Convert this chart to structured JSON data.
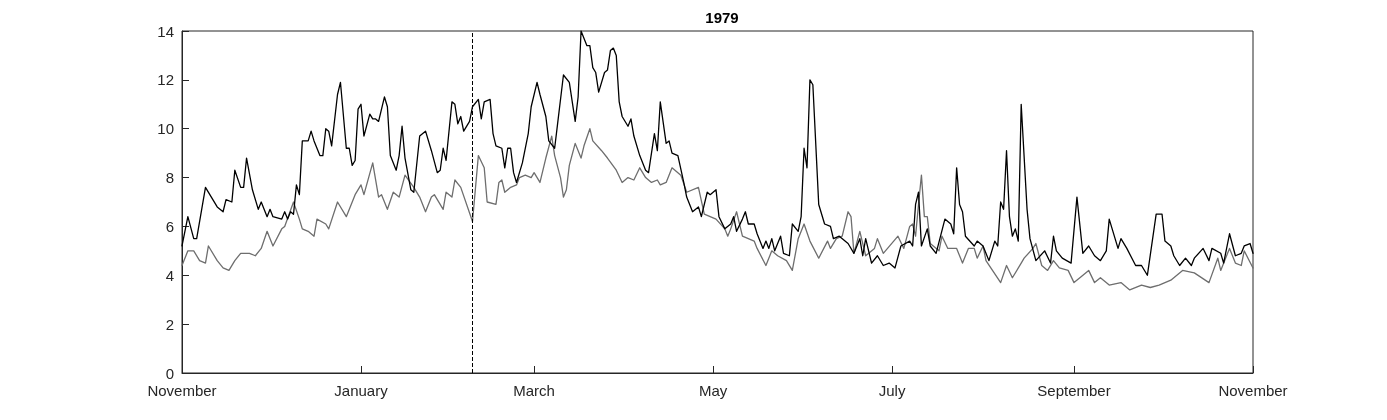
{
  "chart_data": {
    "type": "line",
    "title": "1979",
    "xlim": [
      "1978-11-01",
      "1979-11-01"
    ],
    "xticks": [
      {
        "value": "1978-11-01",
        "label": "November"
      },
      {
        "value": "1979-01-01",
        "label": "January"
      },
      {
        "value": "1979-03-01",
        "label": "March"
      },
      {
        "value": "1979-05-01",
        "label": "May"
      },
      {
        "value": "1979-07-01",
        "label": "July"
      },
      {
        "value": "1979-09-01",
        "label": "September"
      },
      {
        "value": "1979-11-01",
        "label": "November"
      }
    ],
    "ylim": [
      0,
      14
    ],
    "yticks": [
      0,
      2,
      4,
      6,
      8,
      10,
      12,
      14
    ],
    "grid": false,
    "legend": false,
    "marker": "none",
    "line_style": "solid",
    "ref_lines": [
      {
        "axis": "x",
        "value": "1979-02-08",
        "color": "#000000",
        "line_style": "dashed"
      }
    ],
    "series": [
      {
        "color": "#6e6e6e",
        "x": [
          "1978-11-01",
          "1978-11-03",
          "1978-11-05",
          "1978-11-07",
          "1978-11-09",
          "1978-11-10",
          "1978-11-13",
          "1978-11-15",
          "1978-11-17",
          "1978-11-19",
          "1978-11-21",
          "1978-11-24",
          "1978-11-26",
          "1978-11-28",
          "1978-11-30",
          "1978-12-02",
          "1978-12-05",
          "1978-12-06",
          "1978-12-09",
          "1978-12-11",
          "1978-12-12",
          "1978-12-14",
          "1978-12-16",
          "1978-12-17",
          "1978-12-20",
          "1978-12-21",
          "1978-12-24",
          "1978-12-27",
          "1978-12-30",
          "1979-01-01",
          "1979-01-02",
          "1979-01-05",
          "1979-01-07",
          "1979-01-08",
          "1979-01-10",
          "1979-01-12",
          "1979-01-14",
          "1979-01-16",
          "1979-01-19",
          "1979-01-21",
          "1979-01-23",
          "1979-01-25",
          "1979-01-26",
          "1979-01-29",
          "1979-01-30",
          "1979-02-01",
          "1979-02-02",
          "1979-02-04",
          "1979-02-08",
          "1979-02-10",
          "1979-02-12",
          "1979-02-13",
          "1979-02-16",
          "1979-02-17",
          "1979-02-18",
          "1979-02-19",
          "1979-02-21",
          "1979-02-23",
          "1979-02-24",
          "1979-02-26",
          "1979-02-28",
          "1979-03-01",
          "1979-03-03",
          "1979-03-05",
          "1979-03-07",
          "1979-03-08",
          "1979-03-10",
          "1979-03-11",
          "1979-03-12",
          "1979-03-13",
          "1979-03-15",
          "1979-03-17",
          "1979-03-18",
          "1979-03-20",
          "1979-03-21",
          "1979-03-24",
          "1979-03-26",
          "1979-03-29",
          "1979-03-31",
          "1979-04-02",
          "1979-04-04",
          "1979-04-06",
          "1979-04-08",
          "1979-04-10",
          "1979-04-12",
          "1979-04-13",
          "1979-04-15",
          "1979-04-17",
          "1979-04-20",
          "1979-04-22",
          "1979-04-26",
          "1979-04-28",
          "1979-05-02",
          "1979-05-05",
          "1979-05-06",
          "1979-05-07",
          "1979-05-09",
          "1979-05-11",
          "1979-05-15",
          "1979-05-16",
          "1979-05-19",
          "1979-05-21",
          "1979-05-23",
          "1979-05-26",
          "1979-05-28",
          "1979-05-30",
          "1979-06-01",
          "1979-06-03",
          "1979-06-06",
          "1979-06-09",
          "1979-06-10",
          "1979-06-12",
          "1979-06-14",
          "1979-06-16",
          "1979-06-17",
          "1979-06-18",
          "1979-06-20",
          "1979-06-22",
          "1979-06-25",
          "1979-06-26",
          "1979-06-28",
          "1979-07-03",
          "1979-07-05",
          "1979-07-07",
          "1979-07-08",
          "1979-07-09",
          "1979-07-10",
          "1979-07-11",
          "1979-07-12",
          "1979-07-13",
          "1979-07-14",
          "1979-07-17",
          "1979-07-18",
          "1979-07-20",
          "1979-07-23",
          "1979-07-25",
          "1979-07-27",
          "1979-07-29",
          "1979-07-30",
          "1979-08-01",
          "1979-08-02",
          "1979-08-07",
          "1979-08-09",
          "1979-08-11",
          "1979-08-14",
          "1979-08-15",
          "1979-08-18",
          "1979-08-19",
          "1979-08-21",
          "1979-08-23",
          "1979-08-25",
          "1979-08-27",
          "1979-08-30",
          "1979-09-01",
          "1979-09-03",
          "1979-09-06",
          "1979-09-08",
          "1979-09-10",
          "1979-09-13",
          "1979-09-17",
          "1979-09-20",
          "1979-09-24",
          "1979-09-27",
          "1979-09-30",
          "1979-10-04",
          "1979-10-08",
          "1979-10-12",
          "1979-10-17",
          "1979-10-20",
          "1979-10-21",
          "1979-10-24",
          "1979-10-26",
          "1979-10-28",
          "1979-10-29",
          "1979-11-01"
        ],
        "values": [
          4.4,
          5.0,
          5.0,
          4.6,
          4.5,
          5.2,
          4.6,
          4.3,
          4.2,
          4.6,
          4.9,
          4.9,
          4.8,
          5.1,
          5.8,
          5.2,
          5.9,
          6.0,
          7.0,
          6.3,
          5.9,
          5.8,
          5.6,
          6.3,
          6.1,
          5.9,
          7.0,
          6.4,
          7.3,
          7.7,
          7.3,
          8.6,
          7.2,
          7.3,
          6.7,
          7.4,
          7.2,
          8.1,
          7.6,
          7.2,
          6.6,
          7.2,
          7.3,
          6.7,
          7.4,
          7.2,
          7.9,
          7.6,
          6.2,
          8.9,
          8.4,
          7.0,
          6.9,
          7.8,
          7.9,
          7.4,
          7.6,
          7.7,
          8.0,
          8.1,
          8.0,
          8.2,
          7.8,
          8.8,
          9.7,
          8.9,
          8.0,
          7.2,
          7.5,
          8.5,
          9.4,
          8.8,
          9.3,
          10.0,
          9.5,
          9.1,
          8.8,
          8.3,
          7.8,
          8.0,
          7.9,
          8.4,
          8.0,
          7.8,
          7.9,
          7.7,
          7.8,
          8.4,
          8.1,
          7.4,
          7.6,
          6.5,
          6.3,
          5.9,
          5.6,
          5.9,
          6.6,
          5.6,
          5.4,
          5.1,
          4.4,
          5.0,
          4.8,
          4.6,
          4.2,
          5.5,
          6.1,
          5.4,
          4.7,
          5.4,
          5.1,
          5.5,
          5.6,
          6.6,
          6.4,
          4.9,
          5.8,
          4.8,
          5.1,
          5.5,
          4.9,
          5.6,
          5.1,
          6.0,
          6.1,
          5.6,
          6.9,
          8.1,
          6.4,
          6.4,
          5.3,
          5.0,
          5.6,
          5.1,
          5.1,
          4.5,
          5.1,
          5.1,
          4.7,
          5.2,
          4.6,
          3.7,
          4.4,
          3.9,
          4.5,
          4.7,
          5.1,
          5.3,
          4.4,
          4.2,
          4.6,
          4.3,
          4.2,
          3.7,
          3.9,
          4.2,
          3.7,
          3.9,
          3.6,
          3.7,
          3.4,
          3.6,
          3.5,
          3.6,
          3.8,
          4.2,
          4.1,
          3.7,
          4.7,
          4.2,
          5.1,
          4.5,
          4.4,
          5.0,
          4.3
        ]
      },
      {
        "color": "#000000",
        "x": [
          "1978-11-01",
          "1978-11-03",
          "1978-11-05",
          "1978-11-06",
          "1978-11-09",
          "1978-11-11",
          "1978-11-13",
          "1978-11-15",
          "1978-11-16",
          "1978-11-18",
          "1978-11-19",
          "1978-11-21",
          "1978-11-22",
          "1978-11-23",
          "1978-11-25",
          "1978-11-27",
          "1978-11-28",
          "1978-11-30",
          "1978-12-01",
          "1978-12-02",
          "1978-12-05",
          "1978-12-06",
          "1978-12-07",
          "1978-12-08",
          "1978-12-09",
          "1978-12-10",
          "1978-12-11",
          "1978-12-12",
          "1978-12-14",
          "1978-12-15",
          "1978-12-16",
          "1978-12-18",
          "1978-12-19",
          "1978-12-20",
          "1978-12-21",
          "1978-12-22",
          "1978-12-24",
          "1978-12-25",
          "1978-12-27",
          "1978-12-28",
          "1978-12-29",
          "1978-12-30",
          "1978-12-31",
          "1979-01-01",
          "1979-01-02",
          "1979-01-04",
          "1979-01-05",
          "1979-01-06",
          "1979-01-07",
          "1979-01-09",
          "1979-01-10",
          "1979-01-11",
          "1979-01-13",
          "1979-01-14",
          "1979-01-15",
          "1979-01-16",
          "1979-01-18",
          "1979-01-19",
          "1979-01-21",
          "1979-01-23",
          "1979-01-25",
          "1979-01-27",
          "1979-01-28",
          "1979-01-29",
          "1979-01-30",
          "1979-02-01",
          "1979-02-02",
          "1979-02-03",
          "1979-02-04",
          "1979-02-05",
          "1979-02-07",
          "1979-02-08",
          "1979-02-10",
          "1979-02-11",
          "1979-02-12",
          "1979-02-14",
          "1979-02-15",
          "1979-02-16",
          "1979-02-18",
          "1979-02-19",
          "1979-02-20",
          "1979-02-21",
          "1979-02-22",
          "1979-02-23",
          "1979-02-25",
          "1979-02-27",
          "1979-02-28",
          "1979-03-02",
          "1979-03-03",
          "1979-03-05",
          "1979-03-06",
          "1979-03-08",
          "1979-03-09",
          "1979-03-11",
          "1979-03-13",
          "1979-03-15",
          "1979-03-16",
          "1979-03-17",
          "1979-03-19",
          "1979-03-20",
          "1979-03-21",
          "1979-03-22",
          "1979-03-23",
          "1979-03-25",
          "1979-03-26",
          "1979-03-27",
          "1979-03-28",
          "1979-03-29",
          "1979-03-30",
          "1979-03-31",
          "1979-04-02",
          "1979-04-03",
          "1979-04-04",
          "1979-04-06",
          "1979-04-08",
          "1979-04-09",
          "1979-04-11",
          "1979-04-12",
          "1979-04-13",
          "1979-04-15",
          "1979-04-16",
          "1979-04-17",
          "1979-04-19",
          "1979-04-21",
          "1979-04-22",
          "1979-04-24",
          "1979-04-26",
          "1979-04-27",
          "1979-04-29",
          "1979-04-30",
          "1979-05-02",
          "1979-05-03",
          "1979-05-05",
          "1979-05-07",
          "1979-05-08",
          "1979-05-09",
          "1979-05-11",
          "1979-05-12",
          "1979-05-13",
          "1979-05-15",
          "1979-05-16",
          "1979-05-18",
          "1979-05-19",
          "1979-05-20",
          "1979-05-21",
          "1979-05-22",
          "1979-05-24",
          "1979-05-25",
          "1979-05-27",
          "1979-05-28",
          "1979-05-30",
          "1979-05-31",
          "1979-06-01",
          "1979-06-02",
          "1979-06-03",
          "1979-06-04",
          "1979-06-06",
          "1979-06-08",
          "1979-06-10",
          "1979-06-11",
          "1979-06-13",
          "1979-06-16",
          "1979-06-18",
          "1979-06-20",
          "1979-06-21",
          "1979-06-22",
          "1979-06-24",
          "1979-06-26",
          "1979-06-28",
          "1979-06-30",
          "1979-07-02",
          "1979-07-04",
          "1979-07-07",
          "1979-07-08",
          "1979-07-09",
          "1979-07-10",
          "1979-07-11",
          "1979-07-13",
          "1979-07-14",
          "1979-07-16",
          "1979-07-19",
          "1979-07-21",
          "1979-07-22",
          "1979-07-23",
          "1979-07-24",
          "1979-07-25",
          "1979-07-26",
          "1979-07-29",
          "1979-07-30",
          "1979-08-01",
          "1979-08-03",
          "1979-08-05",
          "1979-08-06",
          "1979-08-07",
          "1979-08-08",
          "1979-08-09",
          "1979-08-10",
          "1979-08-11",
          "1979-08-12",
          "1979-08-13",
          "1979-08-14",
          "1979-08-16",
          "1979-08-17",
          "1979-08-19",
          "1979-08-22",
          "1979-08-24",
          "1979-08-25",
          "1979-08-26",
          "1979-08-28",
          "1979-08-31",
          "1979-09-02",
          "1979-09-04",
          "1979-09-06",
          "1979-09-08",
          "1979-09-10",
          "1979-09-12",
          "1979-09-13",
          "1979-09-16",
          "1979-09-17",
          "1979-09-19",
          "1979-09-22",
          "1979-09-24",
          "1979-09-26",
          "1979-09-29",
          "1979-10-01",
          "1979-10-02",
          "1979-10-04",
          "1979-10-05",
          "1979-10-07",
          "1979-10-09",
          "1979-10-11",
          "1979-10-12",
          "1979-10-15",
          "1979-10-17",
          "1979-10-18",
          "1979-10-21",
          "1979-10-22",
          "1979-10-24",
          "1979-10-26",
          "1979-10-28",
          "1979-10-29",
          "1979-10-31",
          "1979-11-01"
        ],
        "values": [
          5.2,
          6.4,
          5.5,
          5.5,
          7.6,
          7.2,
          6.8,
          6.6,
          7.1,
          7.0,
          8.3,
          7.6,
          7.6,
          8.8,
          7.5,
          6.7,
          7.0,
          6.4,
          6.7,
          6.4,
          6.3,
          6.6,
          6.3,
          6.6,
          6.5,
          7.7,
          7.3,
          9.5,
          9.5,
          9.9,
          9.5,
          8.9,
          8.9,
          10.0,
          9.9,
          9.3,
          11.4,
          11.9,
          9.2,
          9.2,
          8.5,
          8.7,
          10.8,
          11.0,
          9.7,
          10.6,
          10.4,
          10.4,
          10.3,
          11.3,
          10.9,
          8.9,
          8.3,
          8.9,
          10.1,
          8.8,
          7.5,
          7.4,
          9.7,
          9.9,
          9.1,
          8.2,
          8.3,
          9.2,
          8.7,
          11.1,
          11.0,
          10.2,
          10.5,
          9.9,
          10.3,
          10.9,
          11.2,
          10.4,
          11.1,
          11.2,
          9.8,
          9.3,
          9.2,
          8.4,
          9.2,
          9.2,
          8.2,
          7.8,
          8.6,
          9.8,
          10.9,
          11.9,
          11.4,
          10.5,
          9.5,
          9.2,
          10.2,
          12.2,
          11.9,
          10.3,
          11.3,
          14.0,
          13.4,
          13.4,
          12.5,
          12.3,
          11.5,
          12.3,
          12.4,
          13.2,
          13.3,
          13.0,
          11.1,
          10.5,
          10.1,
          10.4,
          9.7,
          8.9,
          8.3,
          8.2,
          9.8,
          9.1,
          11.1,
          9.4,
          9.5,
          9.0,
          8.9,
          7.8,
          7.2,
          6.6,
          6.8,
          6.4,
          7.4,
          7.3,
          7.5,
          6.4,
          5.9,
          6.1,
          6.4,
          5.8,
          6.3,
          6.6,
          6.1,
          6.1,
          5.7,
          5.1,
          5.4,
          5.1,
          5.5,
          5.0,
          5.6,
          4.9,
          4.8,
          6.1,
          5.8,
          6.4,
          9.2,
          8.4,
          12.0,
          11.8,
          6.9,
          6.1,
          6.0,
          5.5,
          5.6,
          5.3,
          4.9,
          5.5,
          4.8,
          5.5,
          4.5,
          4.8,
          4.4,
          4.5,
          4.3,
          5.2,
          5.4,
          5.2,
          6.9,
          7.4,
          5.2,
          5.9,
          5.2,
          4.9,
          6.3,
          6.1,
          5.7,
          8.4,
          6.9,
          6.6,
          5.6,
          5.2,
          5.4,
          5.2,
          4.6,
          5.4,
          5.2,
          7.0,
          6.7,
          9.1,
          6.4,
          5.6,
          5.9,
          5.4,
          11.0,
          6.7,
          5.5,
          4.6,
          5.0,
          4.5,
          5.6,
          5.0,
          4.7,
          4.5,
          7.2,
          4.9,
          5.2,
          4.8,
          4.6,
          5.0,
          6.3,
          5.1,
          5.5,
          5.1,
          4.4,
          4.4,
          4.0,
          6.5,
          6.5,
          5.4,
          5.2,
          4.8,
          4.4,
          4.7,
          4.4,
          4.7,
          5.1,
          4.6,
          5.1,
          4.9,
          4.5,
          5.7,
          4.8,
          4.9,
          5.2,
          5.3,
          4.9
        ]
      }
    ]
  }
}
